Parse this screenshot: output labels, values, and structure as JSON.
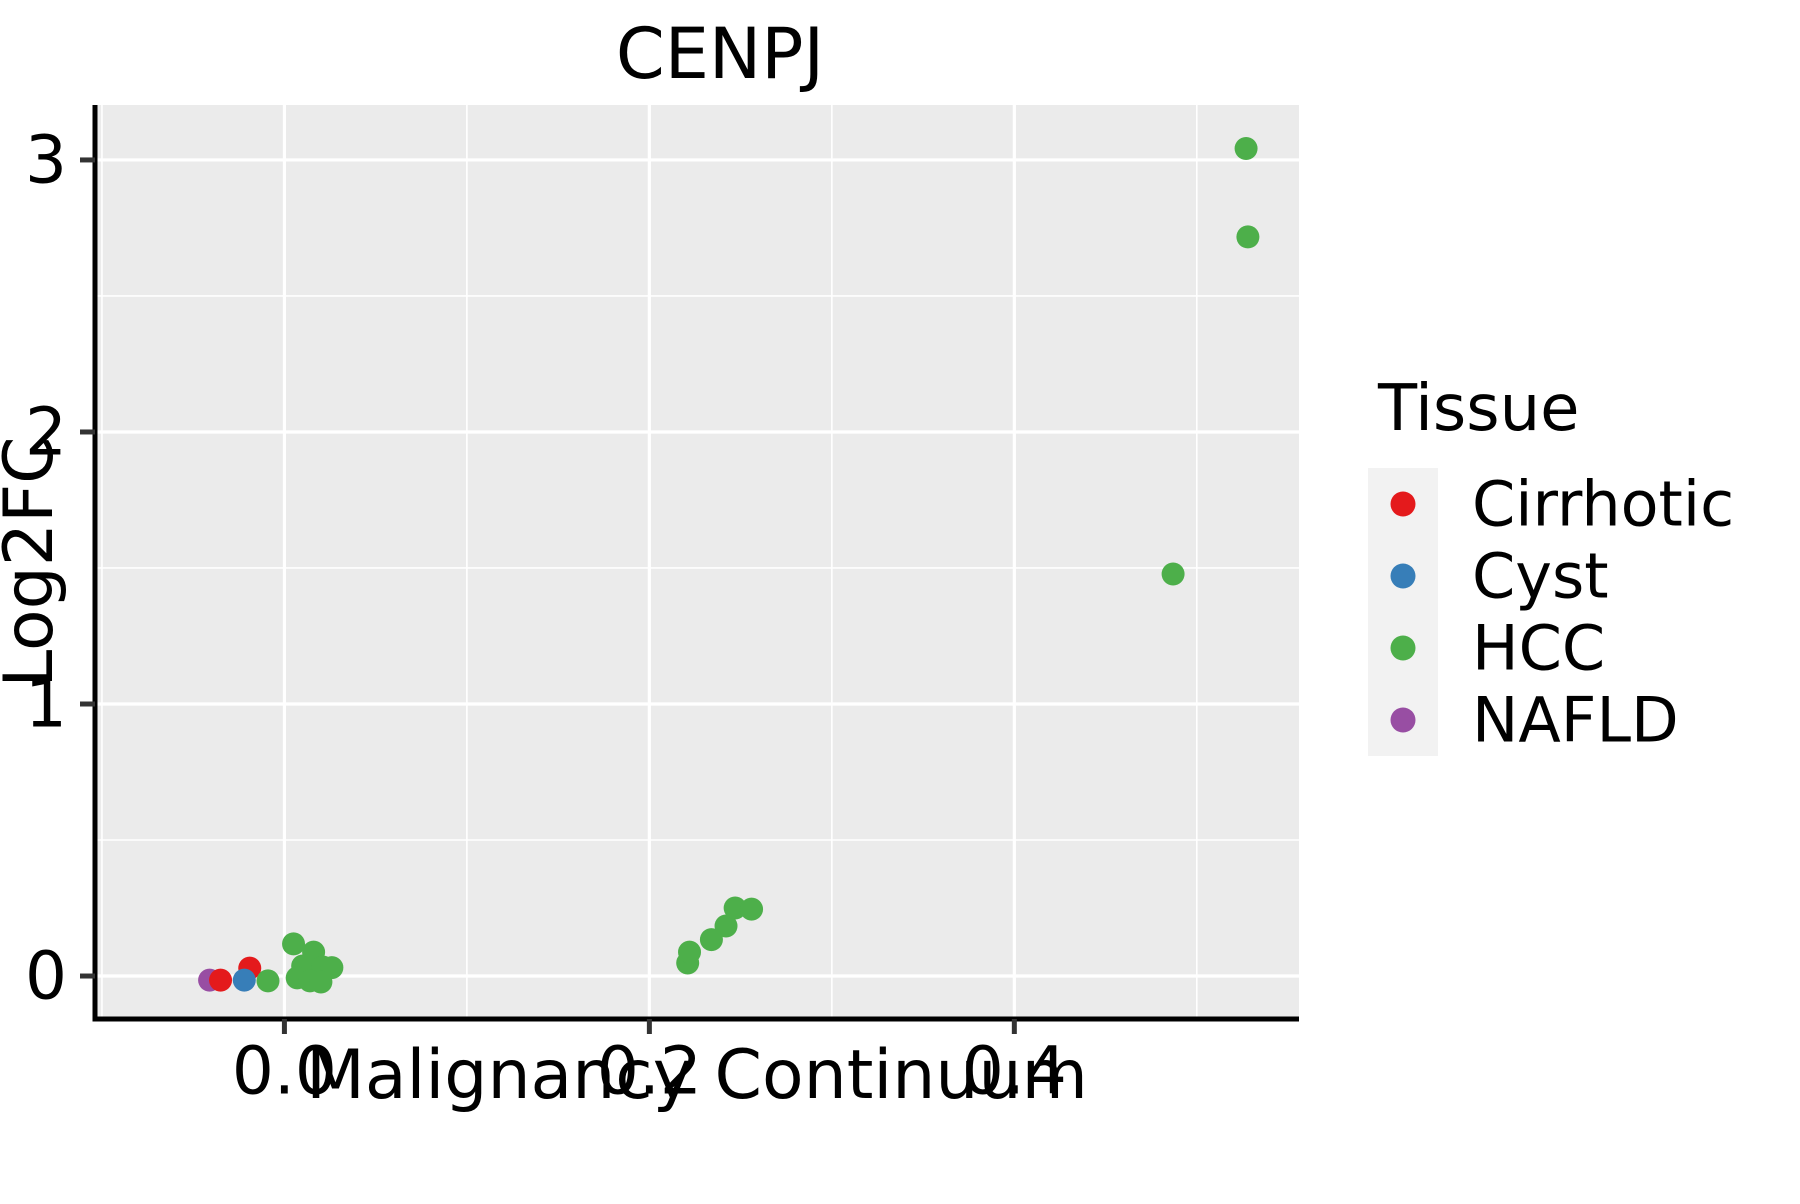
{
  "title": "CENPJ",
  "panel_background": "#EBEBEB",
  "grid_color": "#FFFFFF",
  "axis_line_color": "#000000",
  "tick_color": "#333333",
  "legend_key_background": "#F2F2F2",
  "chart_data": {
    "type": "scatter",
    "title": "CENPJ",
    "xlabel": "Malignancy Continuum",
    "ylabel": "Log2FC",
    "xlim": [
      -0.1038,
      0.556
    ],
    "ylim": [
      -0.158,
      3.202
    ],
    "x_ticks": [
      0.0,
      0.2,
      0.4
    ],
    "x_tick_labels": [
      "0.0",
      "0.2",
      "0.4"
    ],
    "y_ticks": [
      0,
      1,
      2,
      3
    ],
    "y_tick_labels": [
      "0",
      "1",
      "2",
      "3"
    ],
    "x_minor_ticks": [
      -0.1,
      0.1,
      0.3,
      0.5
    ],
    "y_minor_ticks": [
      0.5,
      1.5,
      2.5
    ],
    "grid": true,
    "legend_position": "right",
    "legend_title": "Tissue",
    "point_radius_px": 11.5,
    "series": [
      {
        "name": "NAFLD",
        "color": "#984EA3",
        "points": [
          [
            -0.041,
            -0.015
          ]
        ]
      },
      {
        "name": "Cirrhotic",
        "color": "#E41A1C",
        "points": [
          [
            -0.035,
            -0.015
          ],
          [
            -0.019,
            0.029
          ]
        ]
      },
      {
        "name": "Cyst",
        "color": "#377EB8",
        "points": [
          [
            -0.022,
            -0.015
          ]
        ]
      },
      {
        "name": "HCC",
        "color": "#4DAF4A",
        "points": [
          [
            -0.009,
            -0.018
          ],
          [
            0.005,
            0.118
          ],
          [
            0.016,
            0.088
          ],
          [
            0.01,
            0.037
          ],
          [
            0.021,
            0.033
          ],
          [
            0.026,
            0.031
          ],
          [
            0.007,
            -0.007
          ],
          [
            0.014,
            -0.018
          ],
          [
            0.02,
            -0.022
          ],
          [
            0.221,
            0.048
          ],
          [
            0.222,
            0.088
          ],
          [
            0.234,
            0.134
          ],
          [
            0.242,
            0.184
          ],
          [
            0.247,
            0.25
          ],
          [
            0.256,
            0.246
          ],
          [
            0.487,
            1.478
          ],
          [
            0.527,
            3.042
          ],
          [
            0.528,
            2.717
          ]
        ]
      }
    ],
    "legend_order": [
      "Cirrhotic",
      "Cyst",
      "HCC",
      "NAFLD"
    ]
  }
}
